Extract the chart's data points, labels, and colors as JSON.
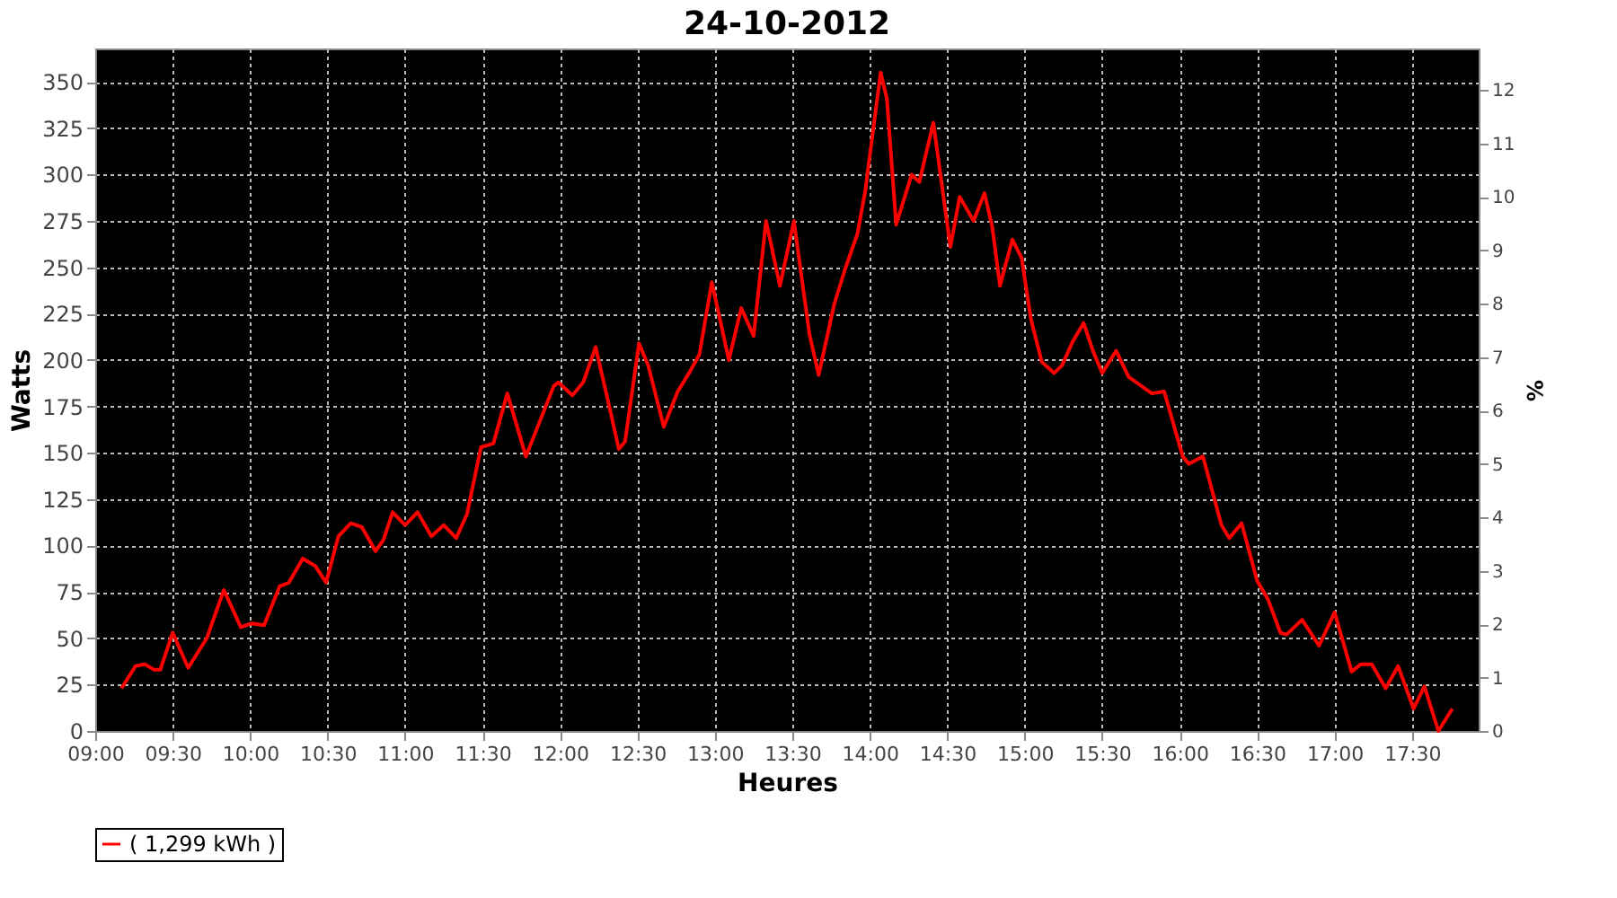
{
  "chart_data": {
    "type": "line",
    "title": "24-10-2012",
    "xlabel": "Heures",
    "ylabel": "Watts",
    "y2label": "%",
    "xlim": [
      9,
      17.93
    ],
    "ylim": [
      0,
      368
    ],
    "y2lim": [
      0,
      12.78
    ],
    "xticks": [
      {
        "value": 9,
        "label": "09:00"
      },
      {
        "value": 9.5,
        "label": "09:30"
      },
      {
        "value": 10,
        "label": "10:00"
      },
      {
        "value": 10.5,
        "label": "10:30"
      },
      {
        "value": 11,
        "label": "11:00"
      },
      {
        "value": 11.5,
        "label": "11:30"
      },
      {
        "value": 12,
        "label": "12:00"
      },
      {
        "value": 12.5,
        "label": "12:30"
      },
      {
        "value": 13,
        "label": "13:00"
      },
      {
        "value": 13.5,
        "label": "13:30"
      },
      {
        "value": 14,
        "label": "14:00"
      },
      {
        "value": 14.5,
        "label": "14:30"
      },
      {
        "value": 15,
        "label": "15:00"
      },
      {
        "value": 15.5,
        "label": "15:30"
      },
      {
        "value": 16,
        "label": "16:00"
      },
      {
        "value": 16.5,
        "label": "16:30"
      },
      {
        "value": 17,
        "label": "17:00"
      },
      {
        "value": 17.5,
        "label": "17:30"
      }
    ],
    "yticks": [
      0,
      25,
      50,
      75,
      100,
      125,
      150,
      175,
      200,
      225,
      250,
      275,
      300,
      325,
      350
    ],
    "y2ticks": [
      0,
      1,
      2,
      3,
      4,
      5,
      6,
      7,
      8,
      9,
      10,
      11,
      12
    ],
    "grid": true,
    "legend": "bottom",
    "marker": "none",
    "line_style": "solid",
    "x": [
      9.17,
      9.26,
      9.32,
      9.38,
      9.42,
      9.5,
      9.6,
      9.72,
      9.83,
      9.94,
      10.01,
      10.09,
      10.19,
      10.25,
      10.34,
      10.42,
      10.49,
      10.57,
      10.65,
      10.72,
      10.81,
      10.86,
      10.92,
      11.0,
      11.08,
      11.17,
      11.25,
      11.33,
      11.4,
      11.49,
      11.57,
      11.66,
      11.78,
      11.96,
      11.99,
      12.08,
      12.15,
      12.23,
      12.31,
      12.38,
      12.42,
      12.51,
      12.57,
      12.67,
      12.76,
      12.84,
      12.9,
      12.98,
      13.09,
      13.17,
      13.25,
      13.33,
      13.42,
      13.51,
      13.61,
      13.67,
      13.77,
      13.84,
      13.92,
      13.97,
      14.07,
      14.11,
      14.17,
      14.27,
      14.32,
      14.41,
      14.52,
      14.58,
      14.67,
      14.74,
      14.79,
      14.84,
      14.92,
      14.98,
      15.04,
      15.11,
      15.19,
      15.24,
      15.31,
      15.38,
      15.44,
      15.5,
      15.59,
      15.67,
      15.82,
      15.9,
      16.02,
      16.06,
      16.15,
      16.27,
      16.32,
      16.4,
      16.5,
      16.57,
      16.65,
      16.69,
      16.79,
      16.9,
      17.0,
      17.11,
      17.17,
      17.24,
      17.33,
      17.41,
      17.51,
      17.58,
      17.67,
      17.76
    ],
    "series": [
      {
        "name": "( 1,299 kWh )",
        "color": "#ff0000",
        "values": [
          23,
          35,
          36,
          33,
          33,
          53,
          34,
          50,
          76,
          56,
          58,
          57,
          78,
          80,
          93,
          89,
          80,
          105,
          112,
          110,
          97,
          103,
          118,
          111,
          118,
          105,
          111,
          104,
          117,
          153,
          155,
          182,
          148,
          186,
          188,
          181,
          188,
          207,
          178,
          152,
          156,
          209,
          197,
          164,
          183,
          194,
          203,
          242,
          200,
          228,
          213,
          275,
          240,
          275,
          214,
          192,
          230,
          249,
          268,
          291,
          355,
          341,
          273,
          300,
          296,
          328,
          261,
          288,
          275,
          290,
          272,
          240,
          265,
          255,
          222,
          199,
          193,
          197,
          210,
          220,
          205,
          193,
          205,
          191,
          182,
          183,
          148,
          144,
          148,
          111,
          104,
          112,
          81,
          71,
          53,
          52,
          60,
          46,
          64,
          32,
          36,
          36,
          23,
          35,
          12,
          24,
          0,
          12
        ]
      }
    ]
  }
}
